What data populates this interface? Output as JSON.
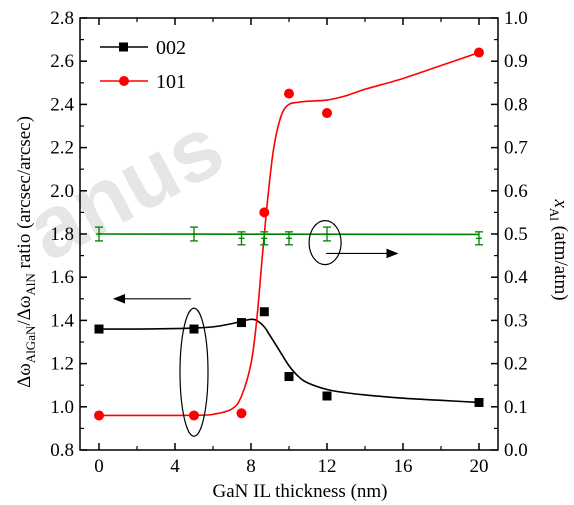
{
  "chart_data": {
    "type": "line",
    "xlabel": "GaN IL thickness (nm)",
    "ylabel_left": {
      "main": "Δω",
      "sub1": "AlGaN",
      "mid": "/Δω",
      "sub2": "AlN",
      "rest": " ratio (arcsec/arcsec)"
    },
    "ylabel_right": {
      "main": "x",
      "sub": "Al",
      "rest": " (atm/atm)"
    },
    "xlim": [
      -1,
      21
    ],
    "xticks": [
      0,
      4,
      8,
      12,
      16,
      20
    ],
    "ylim_left": [
      0.8,
      2.8
    ],
    "yticks_left": [
      "0.8",
      "1.0",
      "1.2",
      "1.4",
      "1.6",
      "1.8",
      "2.0",
      "2.2",
      "2.4",
      "2.6",
      "2.8"
    ],
    "ylim_right": [
      0.0,
      1.0
    ],
    "yticks_right": [
      "0.0",
      "0.1",
      "0.2",
      "0.3",
      "0.4",
      "0.5",
      "0.6",
      "0.7",
      "0.8",
      "0.9",
      "1.0"
    ],
    "series": [
      {
        "name": "002",
        "axis": "left",
        "color": "#000000",
        "marker": "square",
        "points": [
          [
            0,
            1.36
          ],
          [
            5,
            1.36
          ],
          [
            7.5,
            1.39
          ],
          [
            8.7,
            1.44
          ],
          [
            10,
            1.14
          ],
          [
            12,
            1.05
          ],
          [
            20,
            1.02
          ]
        ],
        "fit": [
          [
            0,
            1.36
          ],
          [
            2,
            1.36
          ],
          [
            4,
            1.362
          ],
          [
            5,
            1.365
          ],
          [
            6,
            1.37
          ],
          [
            7,
            1.385
          ],
          [
            7.6,
            1.398
          ],
          [
            8,
            1.405
          ],
          [
            8.3,
            1.4
          ],
          [
            8.7,
            1.37
          ],
          [
            9,
            1.33
          ],
          [
            9.5,
            1.26
          ],
          [
            10,
            1.19
          ],
          [
            10.5,
            1.14
          ],
          [
            11,
            1.11
          ],
          [
            12,
            1.08
          ],
          [
            13,
            1.065
          ],
          [
            14,
            1.055
          ],
          [
            16,
            1.04
          ],
          [
            18,
            1.03
          ],
          [
            20,
            1.02
          ]
        ]
      },
      {
        "name": "101",
        "axis": "left",
        "color": "#ff0000",
        "marker": "circle",
        "points": [
          [
            0,
            0.96
          ],
          [
            5,
            0.96
          ],
          [
            7.5,
            0.97
          ],
          [
            8.7,
            1.9
          ],
          [
            10,
            2.45
          ],
          [
            12,
            2.36
          ],
          [
            20,
            2.64
          ]
        ],
        "fit": [
          [
            0,
            0.96
          ],
          [
            2,
            0.96
          ],
          [
            4,
            0.96
          ],
          [
            5,
            0.961
          ],
          [
            6,
            0.965
          ],
          [
            7,
            0.99
          ],
          [
            7.5,
            1.05
          ],
          [
            8,
            1.2
          ],
          [
            8.3,
            1.4
          ],
          [
            8.6,
            1.7
          ],
          [
            8.9,
            1.98
          ],
          [
            9.2,
            2.2
          ],
          [
            9.6,
            2.35
          ],
          [
            10,
            2.4
          ],
          [
            10.5,
            2.41
          ],
          [
            11,
            2.415
          ],
          [
            12,
            2.42
          ],
          [
            13,
            2.44
          ],
          [
            14,
            2.47
          ],
          [
            16,
            2.52
          ],
          [
            18,
            2.58
          ],
          [
            20,
            2.64
          ]
        ]
      },
      {
        "axis": "right",
        "color": "#008000",
        "marker": "errorbar",
        "points": [
          [
            0,
            0.5,
            0.016
          ],
          [
            5,
            0.5,
            0.016
          ],
          [
            7.5,
            0.49,
            0.015
          ],
          [
            8.7,
            0.49,
            0.015
          ],
          [
            10,
            0.49,
            0.015
          ],
          [
            12,
            0.5,
            0.016
          ],
          [
            20,
            0.49,
            0.015
          ]
        ],
        "fit": [
          [
            0,
            0.5
          ],
          [
            20,
            0.499
          ]
        ]
      }
    ],
    "legend": {
      "placement": "top-left",
      "entries": [
        "002",
        "101"
      ]
    },
    "annotations": [
      {
        "kind": "ellipse-arrow",
        "points_to": "left-axis",
        "target_series": "002"
      },
      {
        "kind": "ellipse-arrow",
        "points_to": "right-axis",
        "target_series": "green"
      }
    ],
    "grid": false
  }
}
